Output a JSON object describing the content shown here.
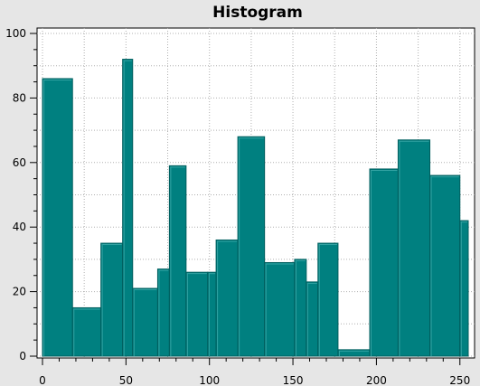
{
  "chart_data": {
    "type": "bar",
    "title": "Histogram",
    "xlabel": "",
    "ylabel": "",
    "xlim": [
      0,
      255
    ],
    "ylim": [
      0,
      100
    ],
    "xticks": [
      0,
      50,
      100,
      150,
      200,
      250
    ],
    "yticks": [
      0,
      20,
      40,
      60,
      80,
      100
    ],
    "grid": true,
    "legend": "none",
    "colors": {
      "bar_fill": "#008080",
      "bar_edge": "#005e5e",
      "bar_highlight": "#33a3a3",
      "plot_background": "#ffffff",
      "window_background": "#e6e6e6",
      "grid": "#b0b0b0"
    },
    "bins": [
      {
        "x0": 0,
        "x1": 18,
        "value": 86
      },
      {
        "x0": 18,
        "x1": 35,
        "value": 15
      },
      {
        "x0": 35,
        "x1": 48,
        "value": 35
      },
      {
        "x0": 48,
        "x1": 54,
        "value": 92
      },
      {
        "x0": 54,
        "x1": 69,
        "value": 21
      },
      {
        "x0": 69,
        "x1": 76,
        "value": 27
      },
      {
        "x0": 76,
        "x1": 86,
        "value": 59
      },
      {
        "x0": 86,
        "x1": 99,
        "value": 26
      },
      {
        "x0": 99,
        "x1": 104,
        "value": 26
      },
      {
        "x0": 104,
        "x1": 117,
        "value": 36
      },
      {
        "x0": 117,
        "x1": 133,
        "value": 68
      },
      {
        "x0": 133,
        "x1": 151,
        "value": 29
      },
      {
        "x0": 151,
        "x1": 158,
        "value": 30
      },
      {
        "x0": 158,
        "x1": 165,
        "value": 23
      },
      {
        "x0": 165,
        "x1": 177,
        "value": 35
      },
      {
        "x0": 177,
        "x1": 196,
        "value": 2
      },
      {
        "x0": 196,
        "x1": 213,
        "value": 58
      },
      {
        "x0": 213,
        "x1": 232,
        "value": 67
      },
      {
        "x0": 232,
        "x1": 250,
        "value": 56
      },
      {
        "x0": 250,
        "x1": 255,
        "value": 42
      }
    ]
  }
}
